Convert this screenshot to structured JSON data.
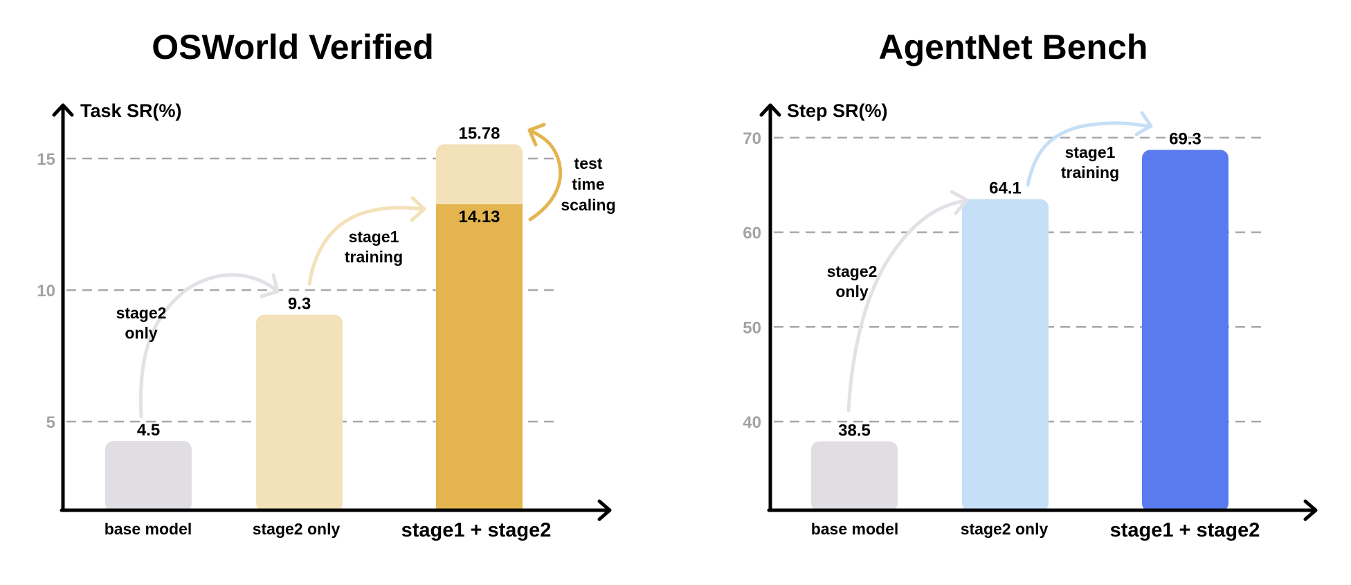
{
  "chart_data": [
    {
      "type": "bar",
      "title": "OSWorld Verified",
      "ylabel": "Task SR(%)",
      "xlabel": "",
      "yticks": [
        5,
        10,
        15
      ],
      "ytick_labels": [
        "5",
        "10",
        "15"
      ],
      "grid": true,
      "categories": [
        "base model",
        "stage2 only",
        "stage1 + stage2"
      ],
      "values": [
        4.5,
        9.3,
        15.78
      ],
      "value_labels": [
        "4.5",
        "9.3",
        "15.78"
      ],
      "stacked_inner": {
        "category": "stage1 + stage2",
        "value": 14.13,
        "label": "14.13"
      },
      "colors": [
        "#E1DEE3",
        "#F3E1B9",
        "#E4B54F"
      ],
      "top_segment_color": "#F3E1B9",
      "annotations": [
        {
          "text_lines": [
            "stage2",
            "only"
          ],
          "from": "base model",
          "to": "stage2 only",
          "color": "#E3E0E6"
        },
        {
          "text_lines": [
            "stage1",
            "training"
          ],
          "from": "stage2 only",
          "to": "stage1 + stage2",
          "color": "#F3E1B9"
        },
        {
          "text_lines": [
            "test",
            "time",
            "scaling"
          ],
          "from": "14.13",
          "to": "15.78",
          "color": "#E4B54F"
        }
      ]
    },
    {
      "type": "bar",
      "title": "AgentNet Bench",
      "ylabel": "Step SR(%)",
      "xlabel": "",
      "yticks": [
        40,
        50,
        60,
        70
      ],
      "ytick_labels": [
        "40",
        "50",
        "60",
        "70"
      ],
      "grid": true,
      "categories": [
        "base model",
        "stage2 only",
        "stage1 + stage2"
      ],
      "values": [
        38.5,
        64.1,
        69.3
      ],
      "value_labels": [
        "38.5",
        "64.1",
        "69.3"
      ],
      "colors": [
        "#E1DEE3",
        "#C5DFF6",
        "#5A7BEF"
      ],
      "annotations": [
        {
          "text_lines": [
            "stage2",
            "only"
          ],
          "from": "base model",
          "to": "stage2 only",
          "color": "#E3E0E6"
        },
        {
          "text_lines": [
            "stage1",
            "training"
          ],
          "from": "stage2 only",
          "to": "stage1 + stage2",
          "color": "#C5DFF6"
        }
      ]
    }
  ]
}
